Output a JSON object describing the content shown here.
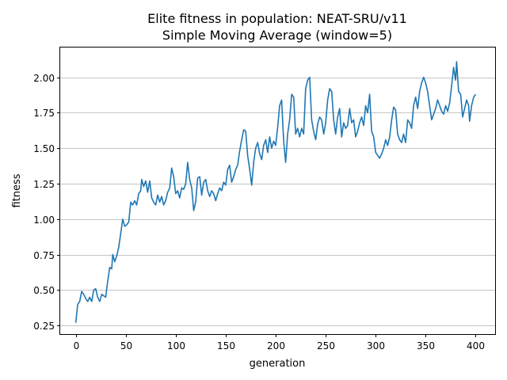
{
  "chart_data": {
    "type": "line",
    "title": "Elite fitness in population: NEAT-SRU/v11",
    "subtitle": "Simple Moving Average (window=5)",
    "xlabel": "generation",
    "ylabel": "fitness",
    "xlim": [
      -15.5,
      419.5
    ],
    "ylim": [
      0.19,
      2.21
    ],
    "xticks": [
      0,
      50,
      100,
      150,
      200,
      250,
      300,
      350,
      400
    ],
    "yticks": [
      0.25,
      0.5,
      0.75,
      1.0,
      1.25,
      1.5,
      1.75,
      2.0
    ],
    "ytick_labels": [
      "0.25",
      "0.50",
      "0.75",
      "1.00",
      "1.25",
      "1.50",
      "1.75",
      "2.00"
    ],
    "grid": "y",
    "line_color": "#1f77b4",
    "series": [
      {
        "points": [
          [
            0,
            0.27
          ],
          [
            2,
            0.4
          ],
          [
            4,
            0.42
          ],
          [
            6,
            0.49
          ],
          [
            8,
            0.47
          ],
          [
            10,
            0.44
          ],
          [
            12,
            0.42
          ],
          [
            14,
            0.45
          ],
          [
            16,
            0.42
          ],
          [
            18,
            0.5
          ],
          [
            20,
            0.51
          ],
          [
            22,
            0.45
          ],
          [
            24,
            0.42
          ],
          [
            26,
            0.47
          ],
          [
            28,
            0.46
          ],
          [
            30,
            0.45
          ],
          [
            32,
            0.56
          ],
          [
            34,
            0.66
          ],
          [
            36,
            0.65
          ],
          [
            37,
            0.75
          ],
          [
            39,
            0.7
          ],
          [
            41,
            0.74
          ],
          [
            43,
            0.8
          ],
          [
            45,
            0.9
          ],
          [
            47,
            1.0
          ],
          [
            49,
            0.95
          ],
          [
            51,
            0.96
          ],
          [
            53,
            0.98
          ],
          [
            55,
            1.12
          ],
          [
            57,
            1.1
          ],
          [
            59,
            1.13
          ],
          [
            61,
            1.1
          ],
          [
            63,
            1.18
          ],
          [
            65,
            1.2
          ],
          [
            66,
            1.28
          ],
          [
            68,
            1.23
          ],
          [
            70,
            1.27
          ],
          [
            72,
            1.19
          ],
          [
            74,
            1.27
          ],
          [
            76,
            1.15
          ],
          [
            78,
            1.12
          ],
          [
            80,
            1.1
          ],
          [
            82,
            1.17
          ],
          [
            84,
            1.12
          ],
          [
            86,
            1.16
          ],
          [
            88,
            1.1
          ],
          [
            90,
            1.13
          ],
          [
            92,
            1.19
          ],
          [
            94,
            1.22
          ],
          [
            96,
            1.36
          ],
          [
            98,
            1.3
          ],
          [
            100,
            1.18
          ],
          [
            102,
            1.2
          ],
          [
            104,
            1.15
          ],
          [
            106,
            1.22
          ],
          [
            108,
            1.21
          ],
          [
            110,
            1.25
          ],
          [
            112,
            1.4
          ],
          [
            114,
            1.28
          ],
          [
            116,
            1.22
          ],
          [
            118,
            1.06
          ],
          [
            120,
            1.12
          ],
          [
            122,
            1.29
          ],
          [
            124,
            1.3
          ],
          [
            126,
            1.17
          ],
          [
            128,
            1.26
          ],
          [
            130,
            1.28
          ],
          [
            132,
            1.2
          ],
          [
            134,
            1.16
          ],
          [
            136,
            1.2
          ],
          [
            138,
            1.18
          ],
          [
            140,
            1.13
          ],
          [
            142,
            1.18
          ],
          [
            144,
            1.22
          ],
          [
            146,
            1.2
          ],
          [
            148,
            1.26
          ],
          [
            150,
            1.24
          ],
          [
            152,
            1.35
          ],
          [
            154,
            1.38
          ],
          [
            156,
            1.26
          ],
          [
            158,
            1.3
          ],
          [
            160,
            1.35
          ],
          [
            162,
            1.38
          ],
          [
            164,
            1.48
          ],
          [
            166,
            1.56
          ],
          [
            168,
            1.63
          ],
          [
            170,
            1.62
          ],
          [
            172,
            1.45
          ],
          [
            174,
            1.35
          ],
          [
            176,
            1.24
          ],
          [
            178,
            1.4
          ],
          [
            180,
            1.5
          ],
          [
            182,
            1.54
          ],
          [
            184,
            1.46
          ],
          [
            186,
            1.42
          ],
          [
            188,
            1.52
          ],
          [
            190,
            1.56
          ],
          [
            192,
            1.47
          ],
          [
            194,
            1.58
          ],
          [
            196,
            1.5
          ],
          [
            198,
            1.55
          ],
          [
            200,
            1.52
          ],
          [
            202,
            1.65
          ],
          [
            204,
            1.8
          ],
          [
            206,
            1.84
          ],
          [
            208,
            1.55
          ],
          [
            210,
            1.4
          ],
          [
            212,
            1.6
          ],
          [
            214,
            1.7
          ],
          [
            216,
            1.88
          ],
          [
            218,
            1.86
          ],
          [
            220,
            1.6
          ],
          [
            222,
            1.64
          ],
          [
            224,
            1.58
          ],
          [
            226,
            1.64
          ],
          [
            228,
            1.6
          ],
          [
            230,
            1.92
          ],
          [
            232,
            1.98
          ],
          [
            234,
            2.0
          ],
          [
            236,
            1.7
          ],
          [
            238,
            1.62
          ],
          [
            240,
            1.56
          ],
          [
            242,
            1.67
          ],
          [
            244,
            1.72
          ],
          [
            246,
            1.7
          ],
          [
            248,
            1.6
          ],
          [
            250,
            1.68
          ],
          [
            252,
            1.84
          ],
          [
            254,
            1.92
          ],
          [
            256,
            1.9
          ],
          [
            258,
            1.7
          ],
          [
            260,
            1.6
          ],
          [
            262,
            1.72
          ],
          [
            264,
            1.78
          ],
          [
            266,
            1.58
          ],
          [
            268,
            1.68
          ],
          [
            270,
            1.64
          ],
          [
            272,
            1.66
          ],
          [
            274,
            1.78
          ],
          [
            276,
            1.68
          ],
          [
            278,
            1.7
          ],
          [
            280,
            1.58
          ],
          [
            282,
            1.62
          ],
          [
            284,
            1.68
          ],
          [
            286,
            1.72
          ],
          [
            288,
            1.66
          ],
          [
            290,
            1.8
          ],
          [
            292,
            1.75
          ],
          [
            294,
            1.88
          ],
          [
            296,
            1.62
          ],
          [
            298,
            1.58
          ],
          [
            300,
            1.47
          ],
          [
            302,
            1.45
          ],
          [
            304,
            1.43
          ],
          [
            306,
            1.46
          ],
          [
            308,
            1.5
          ],
          [
            310,
            1.56
          ],
          [
            312,
            1.52
          ],
          [
            314,
            1.58
          ],
          [
            316,
            1.7
          ],
          [
            318,
            1.79
          ],
          [
            320,
            1.77
          ],
          [
            322,
            1.6
          ],
          [
            324,
            1.56
          ],
          [
            326,
            1.54
          ],
          [
            328,
            1.6
          ],
          [
            330,
            1.54
          ],
          [
            332,
            1.7
          ],
          [
            334,
            1.68
          ],
          [
            336,
            1.64
          ],
          [
            338,
            1.8
          ],
          [
            340,
            1.86
          ],
          [
            342,
            1.78
          ],
          [
            344,
            1.9
          ],
          [
            346,
            1.96
          ],
          [
            348,
            2.0
          ],
          [
            350,
            1.96
          ],
          [
            352,
            1.9
          ],
          [
            354,
            1.8
          ],
          [
            356,
            1.7
          ],
          [
            358,
            1.74
          ],
          [
            360,
            1.78
          ],
          [
            362,
            1.84
          ],
          [
            364,
            1.8
          ],
          [
            366,
            1.76
          ],
          [
            368,
            1.74
          ],
          [
            370,
            1.8
          ],
          [
            372,
            1.76
          ],
          [
            374,
            1.82
          ],
          [
            376,
            1.94
          ],
          [
            378,
            2.07
          ],
          [
            380,
            1.98
          ],
          [
            381,
            2.11
          ],
          [
            383,
            1.9
          ],
          [
            385,
            1.88
          ],
          [
            387,
            1.72
          ],
          [
            389,
            1.78
          ],
          [
            391,
            1.84
          ],
          [
            393,
            1.8
          ],
          [
            394,
            1.69
          ],
          [
            396,
            1.8
          ],
          [
            398,
            1.86
          ],
          [
            400,
            1.88
          ]
        ]
      }
    ]
  }
}
